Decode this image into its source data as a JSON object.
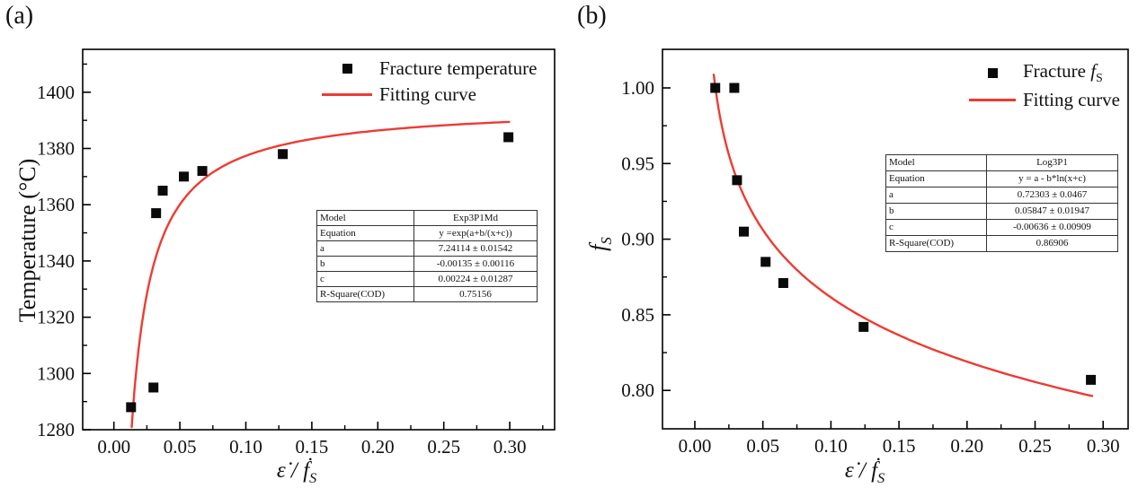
{
  "figure": {
    "background": "#ffffff",
    "curve_color": "#ee3b33",
    "marker_color": "#0a0a0a"
  },
  "chart_data": [
    {
      "panel_label": "(a)",
      "type": "scatter",
      "title": "",
      "ylabel": "Temperature (°C)",
      "xlabel_plain": "ε̇ / ḟS",
      "labels": {
        "xlabel_main": "ε̇ / ḟ",
        "xlabel_sub": "S"
      },
      "xlim": [
        -0.024,
        0.334
      ],
      "ylim": [
        1280,
        1415
      ],
      "grid": false,
      "legend": {
        "position": "top-right",
        "entries": [
          {
            "marker": "square",
            "label": "Fracture temperature"
          },
          {
            "marker": "line",
            "label": "Fitting curve"
          }
        ]
      },
      "x_ticks": {
        "values": [
          0.0,
          0.05,
          0.1,
          0.15,
          0.2,
          0.25,
          0.3
        ],
        "labels": [
          "0.00",
          "0.05",
          "0.10",
          "0.15",
          "0.20",
          "0.25",
          "0.30"
        ],
        "minor": [
          0.025,
          0.075,
          0.125,
          0.175,
          0.225,
          0.275,
          0.325
        ]
      },
      "y_ticks": {
        "values": [
          1280,
          1300,
          1320,
          1340,
          1360,
          1380,
          1400
        ],
        "labels": [
          "1280",
          "1300",
          "1320",
          "1340",
          "1360",
          "1380",
          "1400"
        ],
        "minor": [
          1290,
          1310,
          1330,
          1350,
          1370,
          1390,
          1410
        ]
      },
      "scatter": {
        "label": "Fracture temperature",
        "x": [
          0.013,
          0.03,
          0.032,
          0.037,
          0.053,
          0.067,
          0.128,
          0.299
        ],
        "y": [
          1288,
          1295,
          1357,
          1365,
          1370,
          1372,
          1378,
          1384
        ]
      },
      "fit": {
        "label": "Fitting curve",
        "type": "exp3p1md",
        "equation": "y =exp(a+b/(x+c))",
        "params": {
          "a": 7.24114,
          "b": -0.00135,
          "c": 0.00224
        },
        "x_range": [
          0.0135,
          0.2995
        ],
        "color": "#ee3b33"
      },
      "table": {
        "rows": [
          [
            "Model",
            "Exp3P1Md"
          ],
          [
            "Equation",
            "y =exp(a+b/(x+c))"
          ],
          [
            "a",
            "7.24114 ± 0.01542"
          ],
          [
            "b",
            "-0.00135 ± 0.00116"
          ],
          [
            "c",
            "0.00224 ± 0.01287"
          ],
          [
            "R-Square(COD)",
            "0.75156"
          ]
        ]
      }
    },
    {
      "panel_label": "(b)",
      "type": "scatter",
      "title": "",
      "ylabel_plain": "fS",
      "labels": {
        "ylabel_main": "f",
        "ylabel_sub": "S",
        "xlabel_main": "ε̇ / ḟ",
        "xlabel_sub": "S"
      },
      "xlabel_plain": "ε̇ / ḟS",
      "xlim": [
        -0.024,
        0.318
      ],
      "ylim": [
        0.775,
        1.025
      ],
      "grid": false,
      "legend": {
        "position": "top-right",
        "entries": [
          {
            "marker": "square",
            "label": "Fracture fS",
            "label_prefix": "Fracture",
            "math": "f",
            "math_sub": "S"
          },
          {
            "marker": "line",
            "label": "Fitting curve"
          }
        ]
      },
      "x_ticks": {
        "values": [
          0.0,
          0.05,
          0.1,
          0.15,
          0.2,
          0.25,
          0.3
        ],
        "labels": [
          "0.00",
          "0.05",
          "0.10",
          "0.15",
          "0.20",
          "0.25",
          "0.30"
        ],
        "minor": [
          0.025,
          0.075,
          0.125,
          0.175,
          0.225,
          0.275
        ]
      },
      "y_ticks": {
        "values": [
          0.8,
          0.85,
          0.9,
          0.95,
          1.0
        ],
        "labels": [
          "0.80",
          "0.85",
          "0.90",
          "0.95",
          "1.00"
        ],
        "minor": [
          0.825,
          0.875,
          0.925,
          0.975
        ]
      },
      "scatter": {
        "label": "Fracture fS",
        "x": [
          0.015,
          0.029,
          0.031,
          0.036,
          0.052,
          0.065,
          0.124,
          0.291
        ],
        "y": [
          1.0,
          1.0,
          0.939,
          0.905,
          0.885,
          0.871,
          0.842,
          0.807
        ]
      },
      "fit": {
        "label": "Fitting curve",
        "type": "log3p1",
        "equation": "y = a - b*ln(x+c)",
        "params": {
          "a": 0.72303,
          "b": 0.05847,
          "c": -0.00636
        },
        "x_range": [
          0.0139,
          0.292
        ],
        "color": "#ee3b33"
      },
      "table": {
        "rows": [
          [
            "Model",
            "Log3P1"
          ],
          [
            "Equation",
            "y = a - b*ln(x+c)"
          ],
          [
            "a",
            "0.72303 ± 0.0467"
          ],
          [
            "b",
            "0.05847 ± 0.01947"
          ],
          [
            "c",
            "-0.00636 ± 0.00909"
          ],
          [
            "R-Square(COD)",
            "0.86906"
          ]
        ]
      }
    }
  ]
}
